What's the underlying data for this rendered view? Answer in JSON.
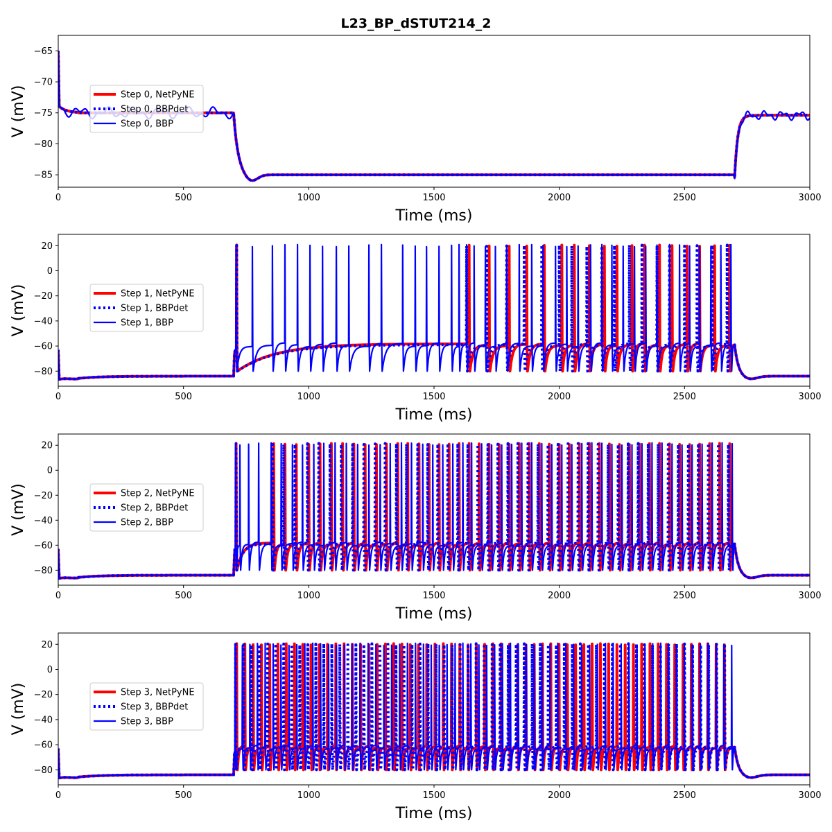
{
  "title": "L23_BP_dSTUT214_2",
  "chart_data": [
    {
      "type": "line",
      "step": 0,
      "xlabel": "Time (ms)",
      "ylabel": "V (mV)",
      "xlim": [
        0,
        3000
      ],
      "ylim": [
        -87,
        -62.5
      ],
      "xticks": [
        0,
        500,
        1000,
        1500,
        2000,
        2500,
        3000
      ],
      "yticks": [
        -85,
        -80,
        -75,
        -70,
        -65
      ],
      "stim": {
        "onset_ms": 700,
        "offset_ms": 2700
      },
      "rest_mV": -75,
      "pulse_mV": -85,
      "spikes": [],
      "legend_position": "center-left",
      "series": [
        {
          "name": "Step 0, NetPyNE",
          "color": "#ff0000",
          "style": "solid"
        },
        {
          "name": "Step 0, BBPdet",
          "color": "#0000ff",
          "style": "dotted"
        },
        {
          "name": "Step 0, BBP",
          "color": "#0000ff",
          "style": "solid"
        }
      ]
    },
    {
      "type": "line",
      "step": 1,
      "xlabel": "Time (ms)",
      "ylabel": "V (mV)",
      "xlim": [
        0,
        3000
      ],
      "ylim": [
        -92,
        29
      ],
      "xticks": [
        0,
        500,
        1000,
        1500,
        2000,
        2500,
        3000
      ],
      "yticks": [
        -80,
        -60,
        -40,
        -20,
        0,
        20
      ],
      "stim": {
        "onset_ms": 700,
        "offset_ms": 2700
      },
      "rest_mV": -84,
      "spike_peak_mV": 20,
      "trough_mV": -80,
      "plateau_mV": -59,
      "legend_position": "center-left",
      "spikes": {
        "NetPyNE": [
          712,
          1640,
          1720,
          1800,
          1870,
          1940,
          2010,
          2060,
          2120,
          2180,
          2230,
          2290,
          2340,
          2400,
          2450,
          2510,
          2560,
          2620,
          2680
        ],
        "BBPdet": [
          712,
          1630,
          1710,
          1790,
          1860,
          1930,
          2000,
          2050,
          2110,
          2170,
          2220,
          2280,
          2330,
          2390,
          2440,
          2500,
          2550,
          2610,
          2670
        ],
        "BBP": [
          710,
          775,
          855,
          905,
          955,
          1005,
          1055,
          1110,
          1160,
          1240,
          1290,
          1375,
          1425,
          1470,
          1520,
          1570,
          1600,
          1630,
          1660,
          1705,
          1745,
          1790,
          1840,
          1890,
          1935,
          1985,
          2030,
          2075,
          2125,
          2170,
          2210,
          2255,
          2300,
          2345,
          2390,
          2440,
          2480,
          2520,
          2560,
          2605,
          2645,
          2685
        ]
      },
      "series": [
        {
          "name": "Step 1, NetPyNE",
          "color": "#ff0000",
          "style": "solid"
        },
        {
          "name": "Step 1, BBPdet",
          "color": "#0000ff",
          "style": "dotted"
        },
        {
          "name": "Step 1, BBP",
          "color": "#0000ff",
          "style": "solid"
        }
      ]
    },
    {
      "type": "line",
      "step": 2,
      "xlabel": "Time (ms)",
      "ylabel": "V (mV)",
      "xlim": [
        0,
        3000
      ],
      "ylim": [
        -92,
        29
      ],
      "xticks": [
        0,
        500,
        1000,
        1500,
        2000,
        2500,
        3000
      ],
      "yticks": [
        -80,
        -60,
        -40,
        -20,
        0,
        20
      ],
      "stim": {
        "onset_ms": 700,
        "offset_ms": 2700
      },
      "rest_mV": -84,
      "spike_peak_mV": 21,
      "trough_mV": -80,
      "plateau_mV": -59,
      "legend_position": "center-left",
      "spikes": {
        "NetPyNE": [
          710,
          860,
          905,
          950,
          1000,
          1045,
          1090,
          1135,
          1180,
          1225,
          1270,
          1310,
          1355,
          1395,
          1440,
          1480,
          1520,
          1560,
          1600,
          1640,
          1680,
          1720,
          1760,
          1800,
          1840,
          1880,
          1920,
          1960,
          2000,
          2040,
          2080,
          2120,
          2160,
          2200,
          2240,
          2280,
          2320,
          2360,
          2400,
          2440,
          2480,
          2520,
          2560,
          2600,
          2640,
          2680
        ],
        "BBPdet": [
          710,
          855,
          900,
          945,
          995,
          1040,
          1085,
          1130,
          1175,
          1220,
          1265,
          1305,
          1350,
          1390,
          1435,
          1475,
          1515,
          1555,
          1595,
          1635,
          1675,
          1715,
          1755,
          1795,
          1835,
          1875,
          1915,
          1955,
          1995,
          2035,
          2075,
          2115,
          2155,
          2195,
          2235,
          2275,
          2315,
          2355,
          2395,
          2435,
          2475,
          2515,
          2555,
          2595,
          2635,
          2675
        ],
        "BBP": [
          708,
          725,
          760,
          800,
          850,
          890,
          935,
          975,
          1020,
          1060,
          1105,
          1150,
          1195,
          1240,
          1285,
          1325,
          1370,
          1410,
          1455,
          1495,
          1535,
          1575,
          1615,
          1650,
          1690,
          1730,
          1770,
          1810,
          1850,
          1890,
          1930,
          1970,
          2010,
          2050,
          2090,
          2130,
          2170,
          2210,
          2250,
          2290,
          2330,
          2370,
          2410,
          2450,
          2490,
          2530,
          2570,
          2610,
          2650,
          2690
        ]
      },
      "series": [
        {
          "name": "Step 2, NetPyNE",
          "color": "#ff0000",
          "style": "solid"
        },
        {
          "name": "Step 2, BBPdet",
          "color": "#0000ff",
          "style": "dotted"
        },
        {
          "name": "Step 2, BBP",
          "color": "#0000ff",
          "style": "solid"
        }
      ]
    },
    {
      "type": "line",
      "step": 3,
      "xlabel": "Time (ms)",
      "ylabel": "V (mV)",
      "xlim": [
        0,
        3000
      ],
      "ylim": [
        -92,
        29
      ],
      "xticks": [
        0,
        500,
        1000,
        1500,
        2000,
        2500,
        3000
      ],
      "yticks": [
        -80,
        -60,
        -40,
        -20,
        0,
        20
      ],
      "stim": {
        "onset_ms": 700,
        "offset_ms": 2700
      },
      "rest_mV": -84,
      "spike_peak_mV": 20,
      "trough_mV": -80,
      "plateau_mV": -62,
      "legend_position": "center-left",
      "spikes": {
        "NetPyNE": [
          712,
          745,
          778,
          811,
          844,
          877,
          910,
          943,
          976,
          1009,
          1042,
          1075,
          1108,
          1141,
          1174,
          1207,
          1240,
          1273,
          1306,
          1339,
          1372,
          1405,
          1438,
          1471,
          1504,
          1537,
          1570,
          1603,
          1636,
          1669,
          1702,
          1735,
          1768,
          1801,
          1834,
          1867,
          1900,
          1933,
          1966,
          1999,
          2032,
          2065,
          2098,
          2131,
          2164,
          2197,
          2230,
          2263,
          2296,
          2329,
          2362,
          2395,
          2428,
          2461,
          2494,
          2527,
          2560,
          2593,
          2626,
          2659
        ],
        "BBPdet": [
          708,
          740,
          772,
          804,
          836,
          868,
          900,
          932,
          964,
          996,
          1028,
          1060,
          1092,
          1124,
          1156,
          1188,
          1220,
          1252,
          1284,
          1316,
          1348,
          1380,
          1412,
          1444,
          1476,
          1508,
          1540,
          1572,
          1604,
          1636,
          1668,
          1700,
          1732,
          1764,
          1796,
          1828,
          1860,
          1892,
          1924,
          1956,
          1988,
          2020,
          2052,
          2084,
          2116,
          2148,
          2180,
          2212,
          2244,
          2276,
          2308,
          2340,
          2372,
          2404,
          2436,
          2468,
          2500,
          2532,
          2564,
          2596,
          2628,
          2660
        ],
        "BBP": [
          706,
          735,
          765,
          795,
          826,
          858,
          889,
          921,
          952,
          984,
          1016,
          1047,
          1079,
          1110,
          1142,
          1173,
          1205,
          1237,
          1268,
          1300,
          1331,
          1363,
          1394,
          1426,
          1458,
          1489,
          1521,
          1552,
          1584,
          1615,
          1647,
          1679,
          1710,
          1742,
          1773,
          1805,
          1836,
          1868,
          1900,
          1931,
          1963,
          1994,
          2026,
          2057,
          2089,
          2121,
          2152,
          2184,
          2215,
          2247,
          2278,
          2310,
          2342,
          2373,
          2405,
          2436,
          2468,
          2499,
          2531,
          2563,
          2594,
          2626,
          2657,
          2688
        ]
      },
      "series": [
        {
          "name": "Step 3, NetPyNE",
          "color": "#ff0000",
          "style": "solid"
        },
        {
          "name": "Step 3, BBPdet",
          "color": "#0000ff",
          "style": "dotted"
        },
        {
          "name": "Step 3, BBP",
          "color": "#0000ff",
          "style": "solid"
        }
      ]
    }
  ]
}
